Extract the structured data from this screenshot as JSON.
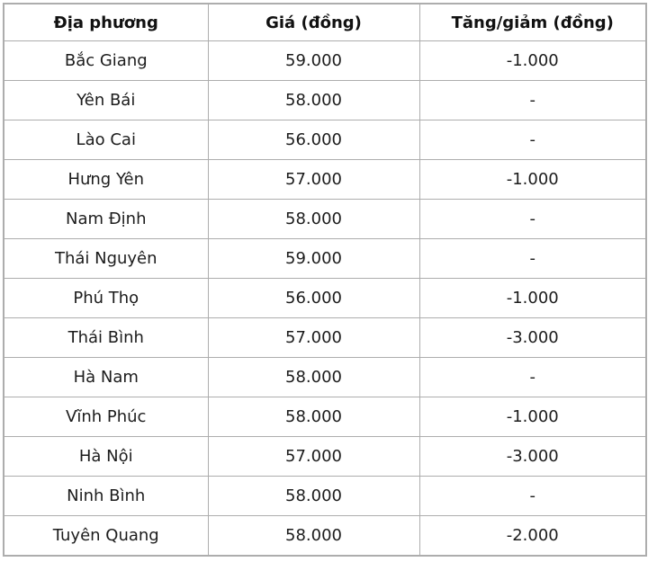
{
  "colors": {
    "background": "#ffffff",
    "border": "#adadad",
    "text": "#1c1c1c"
  },
  "table": {
    "headers": [
      "Địa phương",
      "Giá (đồng)",
      "Tăng/giảm (đồng)"
    ],
    "rows": [
      [
        "Bắc Giang",
        "59.000",
        "-1.000"
      ],
      [
        "Yên Bái",
        "58.000",
        "-"
      ],
      [
        "Lào Cai",
        "56.000",
        "-"
      ],
      [
        "Hưng Yên",
        "57.000",
        "-1.000"
      ],
      [
        "Nam Định",
        "58.000",
        "-"
      ],
      [
        "Thái Nguyên",
        "59.000",
        "-"
      ],
      [
        "Phú Thọ",
        "56.000",
        "-1.000"
      ],
      [
        "Thái Bình",
        "57.000",
        "-3.000"
      ],
      [
        "Hà Nam",
        "58.000",
        "-"
      ],
      [
        "Vĩnh Phúc",
        "58.000",
        "-1.000"
      ],
      [
        "Hà Nội",
        "57.000",
        "-3.000"
      ],
      [
        "Ninh Bình",
        "58.000",
        "-"
      ],
      [
        "Tuyên Quang",
        "58.000",
        "-2.000"
      ]
    ]
  },
  "chart_data": {
    "type": "table",
    "title": "",
    "columns": [
      "Địa phương",
      "Giá (đồng)",
      "Tăng/giảm (đồng)"
    ],
    "rows": [
      [
        "Bắc Giang",
        "59.000",
        "-1.000"
      ],
      [
        "Yên Bái",
        "58.000",
        "-"
      ],
      [
        "Lào Cai",
        "56.000",
        "-"
      ],
      [
        "Hưng Yên",
        "57.000",
        "-1.000"
      ],
      [
        "Nam Định",
        "58.000",
        "-"
      ],
      [
        "Thái Nguyên",
        "59.000",
        "-"
      ],
      [
        "Phú Thọ",
        "56.000",
        "-1.000"
      ],
      [
        "Thái Bình",
        "57.000",
        "-3.000"
      ],
      [
        "Hà Nam",
        "58.000",
        "-"
      ],
      [
        "Vĩnh Phúc",
        "58.000",
        "-1.000"
      ],
      [
        "Hà Nội",
        "57.000",
        "-3.000"
      ],
      [
        "Ninh Bình",
        "58.000",
        "-"
      ],
      [
        "Tuyên Quang",
        "58.000",
        "-2.000"
      ]
    ]
  }
}
